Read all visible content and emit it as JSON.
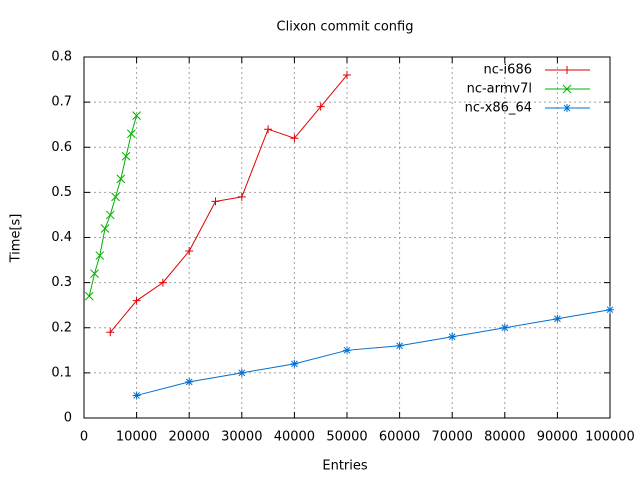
{
  "chart_data": {
    "type": "line",
    "title": "Clixon commit config",
    "xlabel": "Entries",
    "ylabel": "Time[s]",
    "xlim": [
      0,
      100000
    ],
    "xticks": [
      0,
      10000,
      20000,
      30000,
      40000,
      50000,
      60000,
      70000,
      80000,
      90000,
      100000
    ],
    "ylim": [
      0,
      0.8
    ],
    "yticks": [
      0,
      0.1,
      0.2,
      0.3,
      0.4,
      0.5,
      0.6,
      0.7,
      0.8
    ],
    "grid": true,
    "legend": "top-right",
    "series": [
      {
        "name": "nc-i686",
        "color": "#e00000",
        "marker": "plus",
        "x": [
          5000,
          10000,
          15000,
          20000,
          25000,
          30000,
          35000,
          40000,
          45000,
          50000
        ],
        "values": [
          0.19,
          0.26,
          0.3,
          0.37,
          0.48,
          0.49,
          0.64,
          0.62,
          0.69,
          0.76
        ]
      },
      {
        "name": "nc-armv7l",
        "color": "#00b000",
        "marker": "cross",
        "x": [
          1000,
          2000,
          3000,
          4000,
          5000,
          6000,
          7000,
          8000,
          9000,
          10000
        ],
        "values": [
          0.27,
          0.32,
          0.36,
          0.42,
          0.45,
          0.49,
          0.53,
          0.58,
          0.63,
          0.67
        ]
      },
      {
        "name": "nc-x86_64",
        "color": "#0070d0",
        "marker": "star",
        "x": [
          10000,
          20000,
          30000,
          40000,
          50000,
          60000,
          70000,
          80000,
          90000,
          100000
        ],
        "values": [
          0.05,
          0.08,
          0.1,
          0.12,
          0.15,
          0.16,
          0.18,
          0.2,
          0.22,
          0.24
        ]
      }
    ]
  }
}
